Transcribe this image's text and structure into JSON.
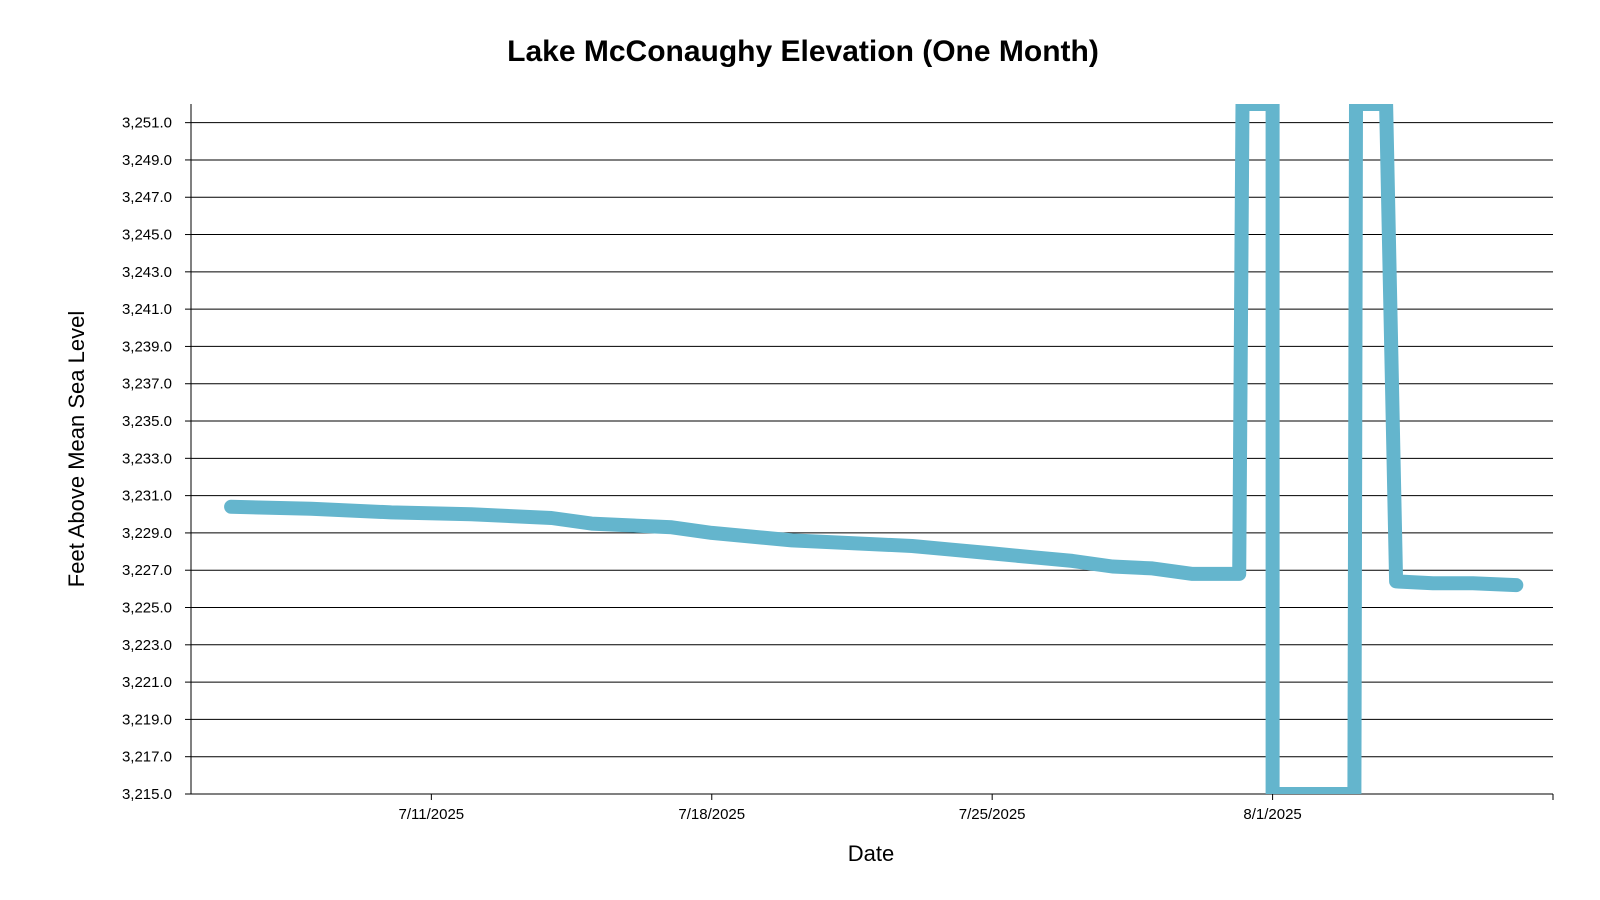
{
  "chart_data": {
    "type": "line",
    "title": "Lake McConaughy Elevation (One Month)",
    "xlabel": "Date",
    "ylabel": "Feet Above Mean Sea Level",
    "x_domain": [
      "2025-07-05",
      "2025-08-08"
    ],
    "xticks": [
      {
        "date": "2025-07-11",
        "label": "7/11/2025"
      },
      {
        "date": "2025-07-18",
        "label": "7/18/2025"
      },
      {
        "date": "2025-07-25",
        "label": "7/25/2025"
      },
      {
        "date": "2025-08-01",
        "label": "8/1/2025"
      }
    ],
    "ylim": [
      3215.0,
      3252.0
    ],
    "yticks": [
      {
        "value": 3215,
        "label": "3,215.0"
      },
      {
        "value": 3217,
        "label": "3,217.0"
      },
      {
        "value": 3219,
        "label": "3,219.0"
      },
      {
        "value": 3221,
        "label": "3,221.0"
      },
      {
        "value": 3223,
        "label": "3,223.0"
      },
      {
        "value": 3225,
        "label": "3,225.0"
      },
      {
        "value": 3227,
        "label": "3,227.0"
      },
      {
        "value": 3229,
        "label": "3,229.0"
      },
      {
        "value": 3231,
        "label": "3,231.0"
      },
      {
        "value": 3233,
        "label": "3,233.0"
      },
      {
        "value": 3235,
        "label": "3,235.0"
      },
      {
        "value": 3237,
        "label": "3,237.0"
      },
      {
        "value": 3239,
        "label": "3,239.0"
      },
      {
        "value": 3241,
        "label": "3,241.0"
      },
      {
        "value": 3243,
        "label": "3,243.0"
      },
      {
        "value": 3245,
        "label": "3,245.0"
      },
      {
        "value": 3247,
        "label": "3,247.0"
      },
      {
        "value": 3249,
        "label": "3,249.0"
      },
      {
        "value": 3251,
        "label": "3,251.0"
      }
    ],
    "grid": true,
    "line_color": "#64B5CD",
    "series": [
      {
        "points": [
          {
            "x": "2025-07-06T00:00",
            "y": 3230.4
          },
          {
            "x": "2025-07-08T00:00",
            "y": 3230.3
          },
          {
            "x": "2025-07-10T00:00",
            "y": 3230.1
          },
          {
            "x": "2025-07-12T00:00",
            "y": 3230.0
          },
          {
            "x": "2025-07-14T00:00",
            "y": 3229.8
          },
          {
            "x": "2025-07-15T00:00",
            "y": 3229.5
          },
          {
            "x": "2025-07-17T00:00",
            "y": 3229.3
          },
          {
            "x": "2025-07-18T00:00",
            "y": 3229.0
          },
          {
            "x": "2025-07-19T00:00",
            "y": 3228.8
          },
          {
            "x": "2025-07-20T00:00",
            "y": 3228.6
          },
          {
            "x": "2025-07-22T00:00",
            "y": 3228.4
          },
          {
            "x": "2025-07-23T00:00",
            "y": 3228.3
          },
          {
            "x": "2025-07-24T00:00",
            "y": 3228.1
          },
          {
            "x": "2025-07-25T00:00",
            "y": 3227.9
          },
          {
            "x": "2025-07-26T00:00",
            "y": 3227.7
          },
          {
            "x": "2025-07-27T00:00",
            "y": 3227.5
          },
          {
            "x": "2025-07-28T00:00",
            "y": 3227.2
          },
          {
            "x": "2025-07-29T00:00",
            "y": 3227.1
          },
          {
            "x": "2025-07-30T00:00",
            "y": 3226.8
          },
          {
            "x": "2025-07-31T04:00",
            "y": 3226.8
          },
          {
            "x": "2025-07-31T06:00",
            "y": 3252.0
          },
          {
            "x": "2025-08-01T00:00",
            "y": 3252.0
          },
          {
            "x": "2025-08-01T00:00",
            "y": 3215.0
          },
          {
            "x": "2025-08-03T01:00",
            "y": 3215.0
          },
          {
            "x": "2025-08-03T02:00",
            "y": 3252.0
          },
          {
            "x": "2025-08-03T20:00",
            "y": 3252.0
          },
          {
            "x": "2025-08-04T02:00",
            "y": 3226.4
          },
          {
            "x": "2025-08-05T00:00",
            "y": 3226.3
          },
          {
            "x": "2025-08-06T00:00",
            "y": 3226.3
          },
          {
            "x": "2025-08-07T02:00",
            "y": 3226.2
          }
        ]
      }
    ]
  }
}
